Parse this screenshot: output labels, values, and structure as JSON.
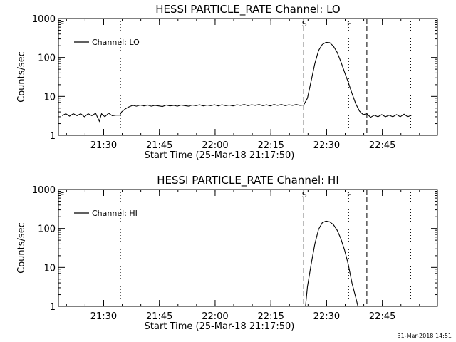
{
  "footer": {
    "timestamp": "31-Mar-2018 14:51"
  },
  "chart_data": [
    {
      "type": "line",
      "title": "HESSI PARTICLE_RATE Channel: LO",
      "xlabel": "Start Time (25-Mar-18 21:17:50)",
      "ylabel": "Counts/sec",
      "yscale": "log",
      "ylim": [
        1,
        1000
      ],
      "xlim_minutes_after_start": [
        0,
        102
      ],
      "x_tick_labels": [
        "21:30",
        "21:45",
        "22:00",
        "22:15",
        "22:30",
        "22:45"
      ],
      "x_tick_minutes_after_start": [
        12.17,
        27.17,
        42.17,
        57.17,
        72.17,
        87.17
      ],
      "y_tick_labels": [
        "1",
        "10",
        "100",
        "1000"
      ],
      "y_tick_values": [
        1,
        10,
        100,
        1000
      ],
      "legend": {
        "label": "Channel: LO",
        "placement": "top-left"
      },
      "markers": [
        {
          "label": "S",
          "minute": 66.0,
          "style": "dashed"
        },
        {
          "label": "E",
          "minute": 78.1,
          "style": "dotted"
        },
        {
          "label": "",
          "minute": 83.0,
          "style": "dashed"
        },
        {
          "label": "",
          "minute": 16.7,
          "style": "dotted"
        },
        {
          "label": "",
          "minute": 94.8,
          "style": "dotted"
        }
      ],
      "series": [
        {
          "name": "Channel: LO",
          "points": [
            [
              1,
              3.2
            ],
            [
              2,
              3.6
            ],
            [
              3,
              3.1
            ],
            [
              4,
              3.6
            ],
            [
              5,
              3.2
            ],
            [
              6,
              3.6
            ],
            [
              7,
              3.0
            ],
            [
              8,
              3.6
            ],
            [
              9,
              3.2
            ],
            [
              10,
              3.7
            ],
            [
              11,
              2.3
            ],
            [
              11.6,
              3.6
            ],
            [
              12.5,
              3.0
            ],
            [
              13.5,
              3.7
            ],
            [
              14.5,
              3.2
            ],
            [
              15.5,
              3.3
            ],
            [
              16.5,
              3.3
            ],
            [
              17,
              4.0
            ],
            [
              18,
              4.8
            ],
            [
              19,
              5.4
            ],
            [
              20,
              5.9
            ],
            [
              21,
              5.6
            ],
            [
              22,
              6.0
            ],
            [
              23,
              5.7
            ],
            [
              24,
              6.0
            ],
            [
              25,
              5.6
            ],
            [
              26,
              5.9
            ],
            [
              27,
              5.7
            ],
            [
              28,
              5.5
            ],
            [
              29,
              6.0
            ],
            [
              30,
              5.7
            ],
            [
              31,
              5.9
            ],
            [
              32,
              5.6
            ],
            [
              33,
              6.0
            ],
            [
              34,
              5.8
            ],
            [
              35,
              5.6
            ],
            [
              36,
              6.0
            ],
            [
              37,
              5.8
            ],
            [
              38,
              6.1
            ],
            [
              39,
              5.7
            ],
            [
              40,
              6.0
            ],
            [
              41,
              5.8
            ],
            [
              42,
              6.1
            ],
            [
              43,
              5.7
            ],
            [
              44,
              6.1
            ],
            [
              45,
              5.8
            ],
            [
              46,
              6.0
            ],
            [
              47,
              5.7
            ],
            [
              48,
              6.1
            ],
            [
              49,
              5.9
            ],
            [
              50,
              6.2
            ],
            [
              51,
              5.8
            ],
            [
              52,
              6.1
            ],
            [
              53,
              5.9
            ],
            [
              54,
              6.2
            ],
            [
              55,
              5.8
            ],
            [
              56,
              6.1
            ],
            [
              57,
              5.7
            ],
            [
              58,
              6.2
            ],
            [
              59,
              5.9
            ],
            [
              60,
              6.2
            ],
            [
              61,
              5.8
            ],
            [
              62,
              6.1
            ],
            [
              63,
              5.9
            ],
            [
              64,
              6.2
            ],
            [
              65,
              5.9
            ],
            [
              66,
              6.0
            ],
            [
              67,
              9
            ],
            [
              68,
              25
            ],
            [
              69,
              70
            ],
            [
              70,
              150
            ],
            [
              71,
              215
            ],
            [
              72,
              245
            ],
            [
              73,
              240
            ],
            [
              74,
              195
            ],
            [
              75,
              135
            ],
            [
              76,
              78
            ],
            [
              77,
              42
            ],
            [
              78,
              23
            ],
            [
              79,
              12
            ],
            [
              80,
              6.5
            ],
            [
              81,
              4.2
            ],
            [
              82,
              3.4
            ],
            [
              83,
              3.6
            ],
            [
              84,
              2.9
            ],
            [
              85,
              3.3
            ],
            [
              86,
              3.0
            ],
            [
              87,
              3.4
            ],
            [
              88,
              3.0
            ],
            [
              89,
              3.3
            ],
            [
              90,
              3.0
            ],
            [
              91,
              3.4
            ],
            [
              92,
              3.0
            ],
            [
              93,
              3.5
            ],
            [
              94,
              3.0
            ],
            [
              95,
              3.3
            ]
          ]
        }
      ]
    },
    {
      "type": "line",
      "title": "HESSI PARTICLE_RATE Channel: HI",
      "xlabel": "Start Time (25-Mar-18 21:17:50)",
      "ylabel": "Counts/sec",
      "yscale": "log",
      "ylim": [
        1,
        1000
      ],
      "xlim_minutes_after_start": [
        0,
        102
      ],
      "x_tick_labels": [
        "21:30",
        "21:45",
        "22:00",
        "22:15",
        "22:30",
        "22:45"
      ],
      "x_tick_minutes_after_start": [
        12.17,
        27.17,
        42.17,
        57.17,
        72.17,
        87.17
      ],
      "y_tick_labels": [
        "1",
        "10",
        "100",
        "1000"
      ],
      "y_tick_values": [
        1,
        10,
        100,
        1000
      ],
      "legend": {
        "label": "Channel: HI",
        "placement": "top-left"
      },
      "markers": [
        {
          "label": "S",
          "minute": 66.0,
          "style": "dashed"
        },
        {
          "label": "E",
          "minute": 78.1,
          "style": "dotted"
        },
        {
          "label": "",
          "minute": 83.0,
          "style": "dashed"
        },
        {
          "label": "",
          "minute": 16.7,
          "style": "dotted"
        },
        {
          "label": "",
          "minute": 94.8,
          "style": "dotted"
        }
      ],
      "series": [
        {
          "name": "Channel: HI",
          "points": [
            [
              66.5,
              1.0
            ],
            [
              67,
              3.2
            ],
            [
              68,
              12
            ],
            [
              69,
              40
            ],
            [
              70,
              95
            ],
            [
              71,
              140
            ],
            [
              72,
              155
            ],
            [
              73,
              148
            ],
            [
              74,
              125
            ],
            [
              75,
              90
            ],
            [
              76,
              55
            ],
            [
              77,
              28
            ],
            [
              78,
              12
            ],
            [
              79,
              4.0
            ],
            [
              80,
              1.7
            ],
            [
              80.6,
              1.0
            ]
          ]
        }
      ]
    }
  ]
}
